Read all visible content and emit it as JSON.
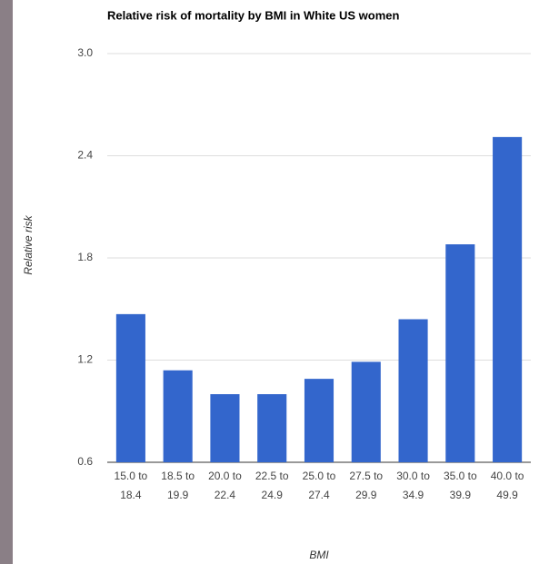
{
  "chart_data": {
    "type": "bar",
    "title": "Relative risk of mortality by BMI in White US women",
    "x_label": "BMI",
    "y_label": "Relative risk",
    "categories": [
      "15.0 to 18.4",
      "18.5 to 19.9",
      "20.0 to 22.4",
      "22.5 to 24.9",
      "25.0 to 27.4",
      "27.5 to 29.9",
      "30.0 to 34.9",
      "35.0 to 39.9",
      "40.0 to 49.9"
    ],
    "values": [
      1.47,
      1.14,
      1.0,
      1.0,
      1.09,
      1.19,
      1.44,
      1.88,
      2.51
    ],
    "color": "#3366cc",
    "ylim": [
      0.6,
      3.0
    ],
    "yticks": [
      0.6,
      1.2,
      1.8,
      2.4,
      {
        "value": 3.0,
        "label": "3.0"
      }
    ],
    "grid": true
  }
}
